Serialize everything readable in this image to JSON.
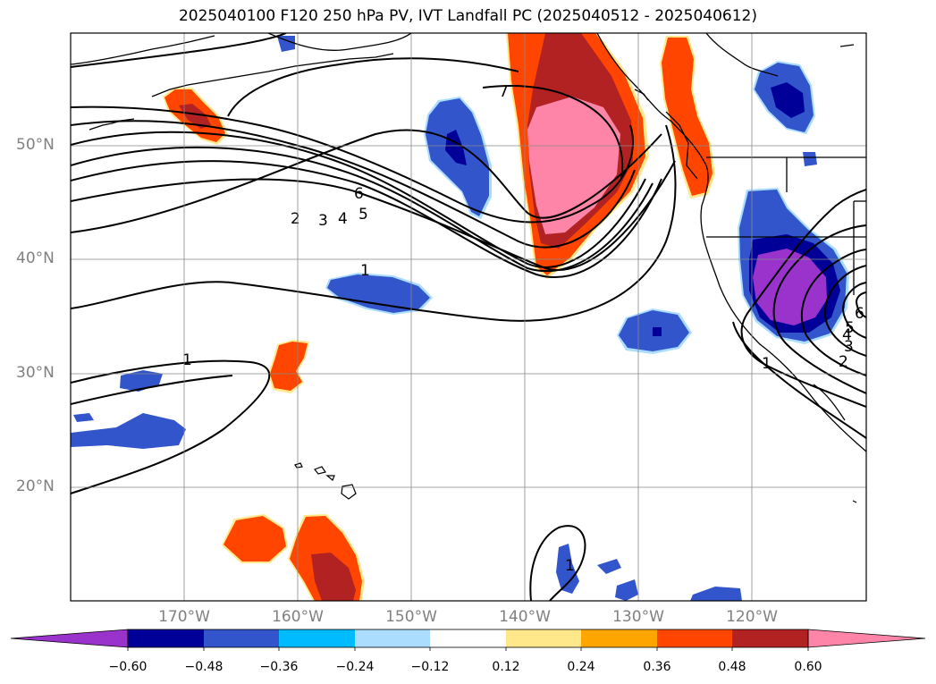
{
  "title": "2025040100 F120 250 hPa PV, IVT Landfall PC (2025040512 - 2025040612)",
  "lat_labels": [
    "50°N",
    "40°N",
    "30°N",
    "20°N"
  ],
  "lon_labels": [
    "170°W",
    "160°W",
    "150°W",
    "140°W",
    "130°W",
    "120°W"
  ],
  "colorbar": {
    "ticks": [
      "−0.60",
      "−0.48",
      "−0.36",
      "−0.24",
      "−0.12",
      "0.12",
      "0.24",
      "0.36",
      "0.48",
      "0.60"
    ],
    "colors": [
      "#9933cc",
      "#000099",
      "#3355cc",
      "#00bbff",
      "#aaddff",
      "#ffffff",
      "#ffe88a",
      "#ffa500",
      "#ff4500",
      "#b22222",
      "#ff85a8"
    ]
  },
  "contour_labels": [
    "1",
    "2",
    "3",
    "4",
    "5",
    "6",
    "7",
    "1",
    "1",
    "1",
    "2",
    "3",
    "4",
    "5",
    "6"
  ]
}
